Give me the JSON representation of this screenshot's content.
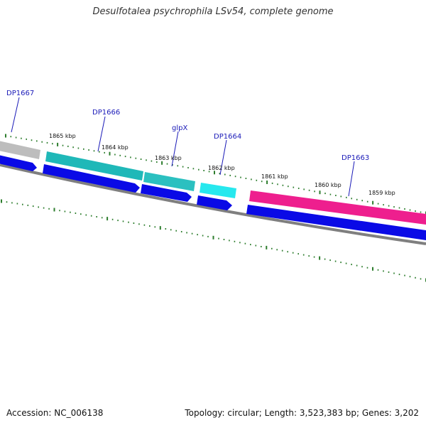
{
  "title": "Desulfotalea psychrophila LSv54, complete genome",
  "footer": {
    "accession": "Accession: NC_006138",
    "summary": "Topology: circular; Length: 3,523,383 bp; Genes: 3,202"
  },
  "colors": {
    "backbone": "#808080",
    "tick": "#2d7d2d",
    "gene_label": "#1a1ab8",
    "cds_arrow": "#0a0ae6"
  },
  "position_labels": [
    "1865 kbp",
    "1864 kbp",
    "1863 kbp",
    "1862 kbp",
    "1861 kbp",
    "1860 kbp",
    "1859 kbp"
  ],
  "genes": [
    {
      "name": "DP1667",
      "color": "#bdbdbd"
    },
    {
      "name": "DP1666",
      "color": "#1fb8b8"
    },
    {
      "name": "glpX",
      "color": "#2bc0c0"
    },
    {
      "name": "DP1664",
      "color": "#27e8ee"
    },
    {
      "name": "DP1663",
      "color": "#ee1f8e"
    }
  ]
}
